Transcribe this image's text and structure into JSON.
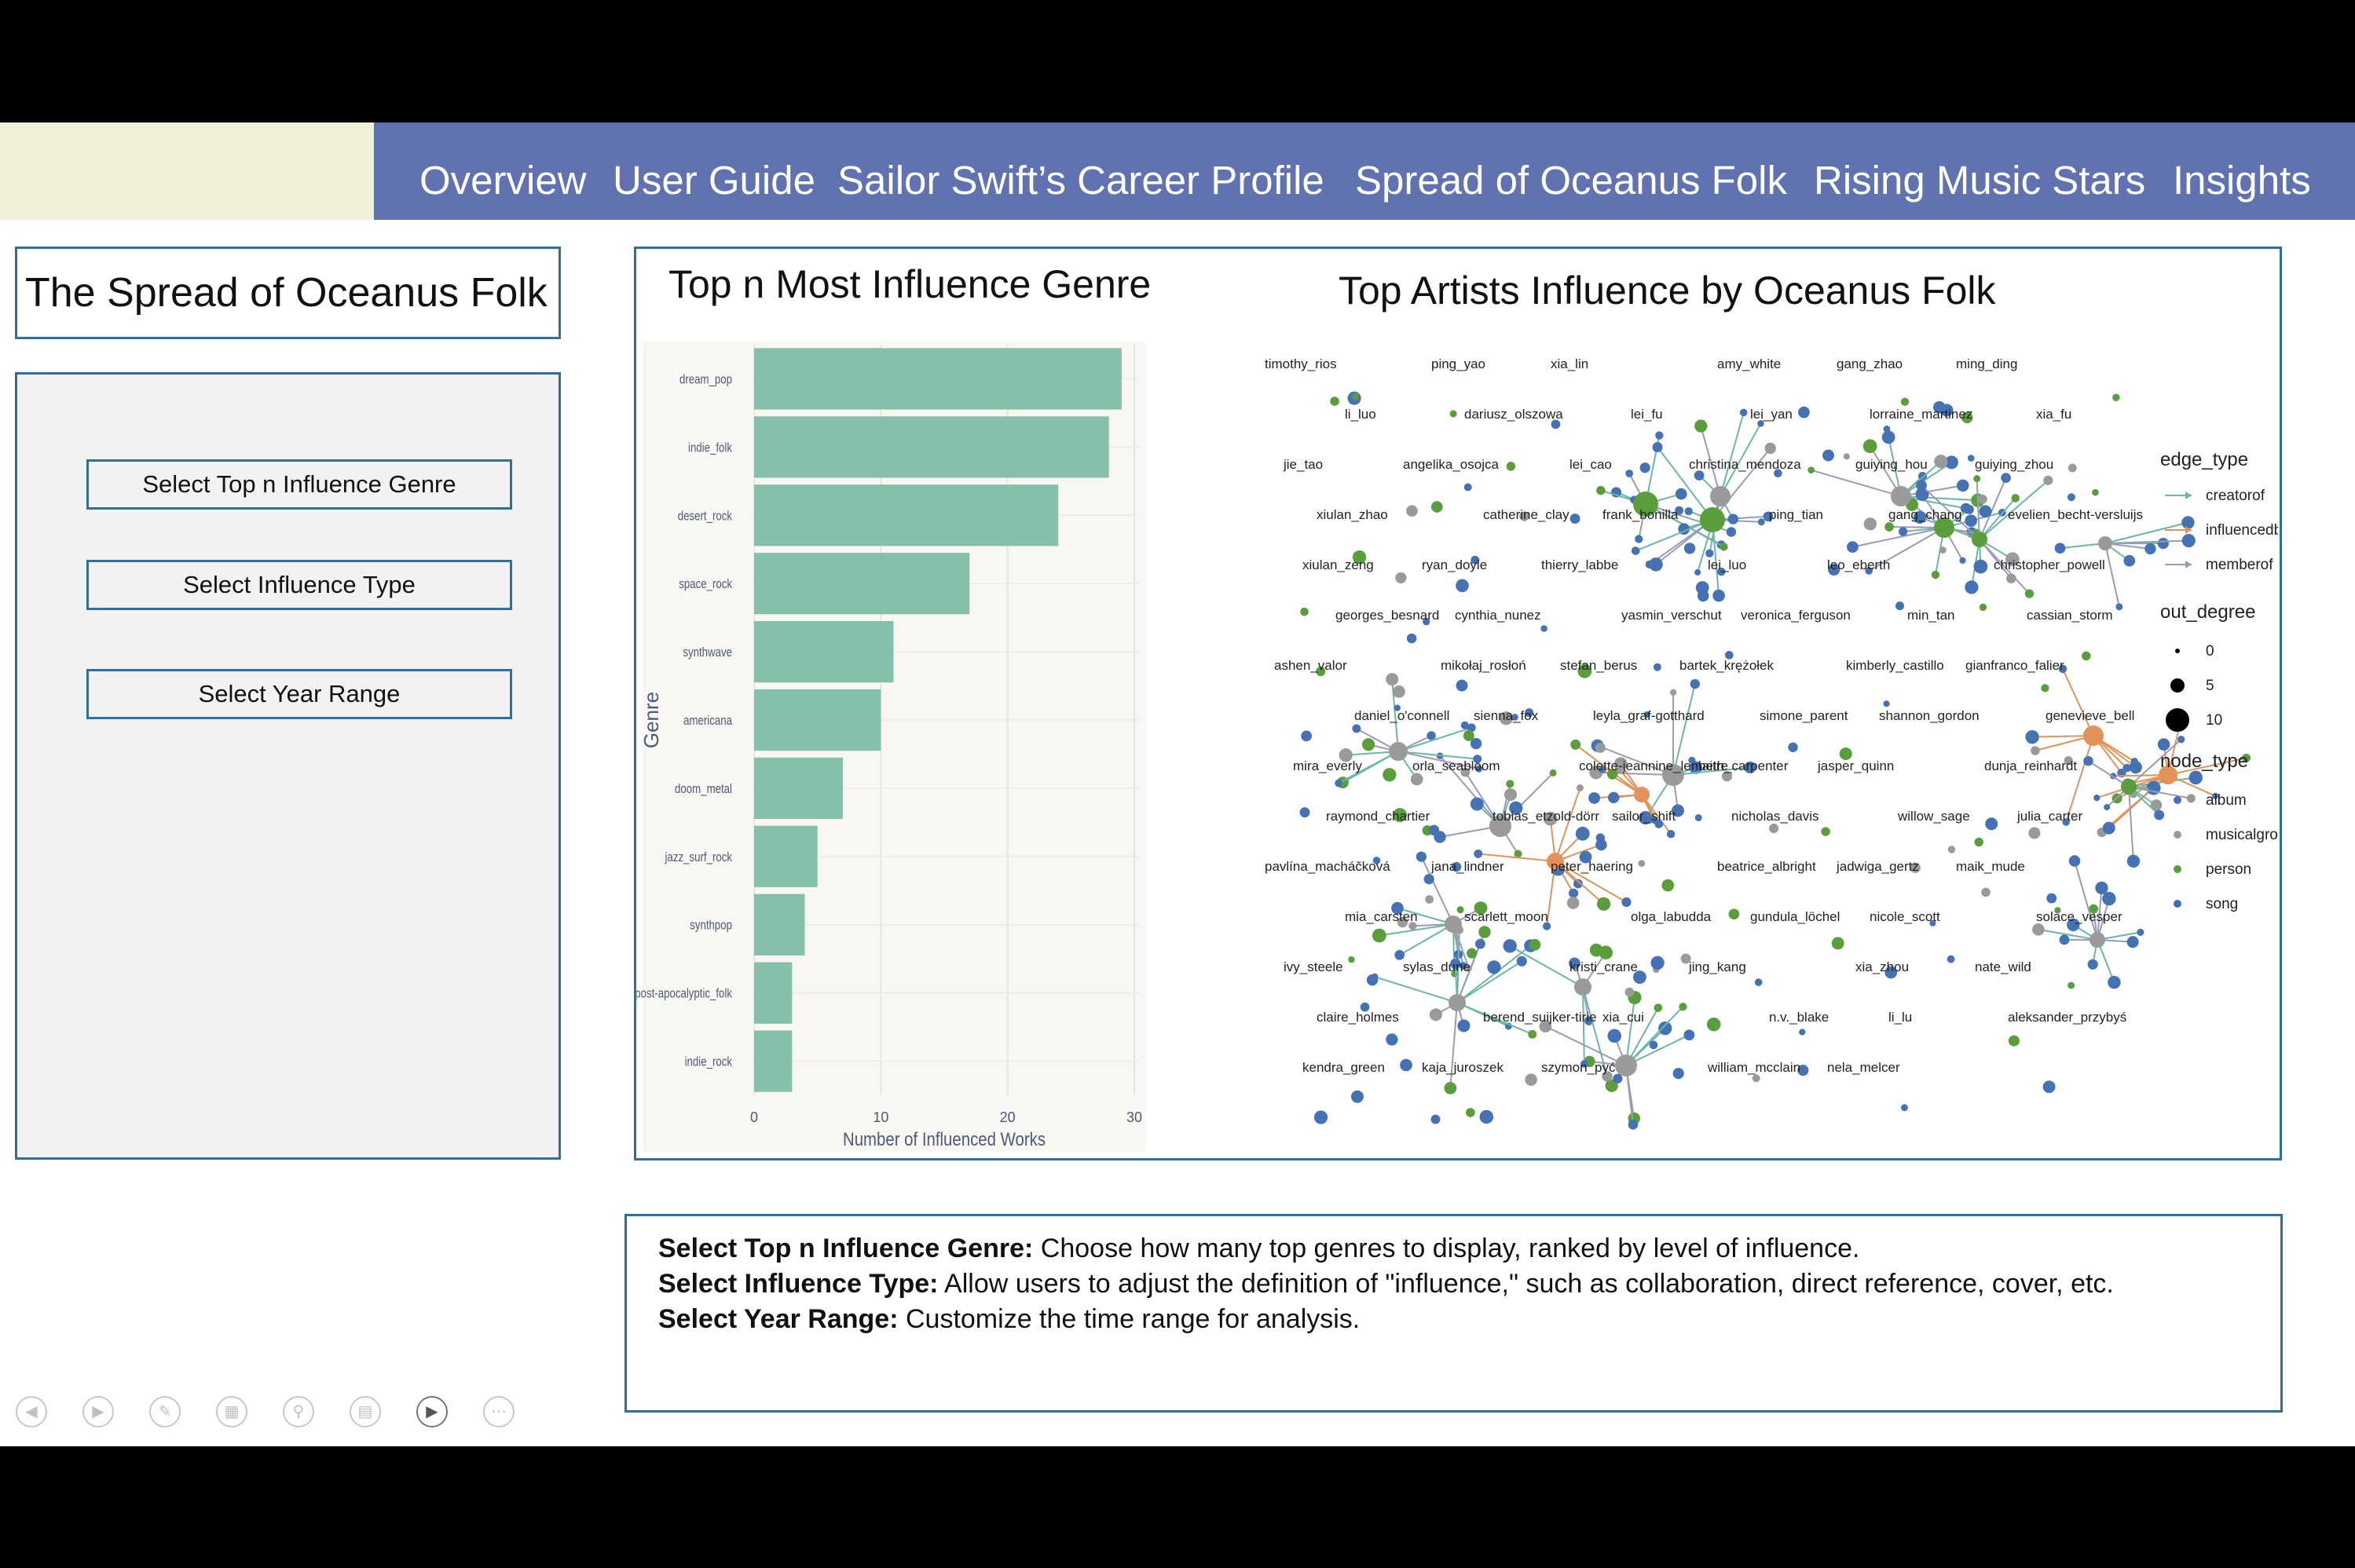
{
  "nav": {
    "items": [
      "Overview",
      "User Guide",
      "Sailor Swift’s Career Profile",
      "Spread of Oceanus Folk",
      "Rising Music Stars",
      "Insights"
    ]
  },
  "page_title": "The Spread of Oceanus Folk",
  "controls": {
    "top_n": "Select Top n Influence Genre",
    "influence_type": "Select Influence Type",
    "year_range": "Select Year Range"
  },
  "chart_titles": {
    "bar": "Top n Most Influence Genre",
    "network": "Top Artists Influence by Oceanus Folk"
  },
  "chart_data": {
    "type": "bar",
    "orientation": "horizontal",
    "categories": [
      "dream_pop",
      "indie_folk",
      "desert_rock",
      "space_rock",
      "synthwave",
      "americana",
      "doom_metal",
      "jazz_surf_rock",
      "synthpop",
      "post-apocalyptic_folk",
      "indie_rock"
    ],
    "values": [
      29,
      28,
      24,
      17,
      11,
      10,
      7,
      5,
      4,
      3,
      3
    ],
    "xlabel": "Number of Influenced Works",
    "ylabel": "Genre",
    "xlim": [
      0,
      30
    ],
    "xticks": [
      0,
      10,
      20,
      30
    ],
    "bar_color": "#86c0aa",
    "background": "#f8f7f1",
    "grid": true
  },
  "network": {
    "legend": {
      "edge_type": {
        "title": "edge_type",
        "items": [
          {
            "label": "creatorof",
            "color": "#6ab7a8"
          },
          {
            "label": "influencedby",
            "color": "#e3935a"
          },
          {
            "label": "memberof",
            "color": "#9a9ab8"
          }
        ]
      },
      "out_degree": {
        "title": "out_degree",
        "items": [
          {
            "label": "0",
            "size": 0
          },
          {
            "label": "5",
            "size": 5
          },
          {
            "label": "10",
            "size": 10
          }
        ]
      },
      "node_type": {
        "title": "node_type",
        "items": [
          {
            "label": "album",
            "color": "#4472b5"
          },
          {
            "label": "musicalgroup",
            "color": "#9a9a9a"
          },
          {
            "label": "person",
            "color": "#5a9e3c"
          },
          {
            "label": "song",
            "color": "#3e6eb0"
          }
        ]
      }
    },
    "labels": [
      "timothy_rios",
      "ping_yao",
      "xia_lin",
      "amy_white",
      "gang_zhao",
      "ming_ding",
      "li_luo",
      "dariusz_olszowa",
      "lei_fu",
      "lei_yan",
      "lorraine_martinez",
      "xia_fu",
      "jie_tao",
      "angelika_osojca",
      "lei_cao",
      "christina_mendoza",
      "guiying_hou",
      "guiying_zhou",
      "xiulan_zhao",
      "catherine_clay",
      "frank_bonilla",
      "ping_tian",
      "gang_chang",
      "evelien_becht-versluijs",
      "xiulan_zeng",
      "ryan_doyle",
      "thierry_labbe",
      "lei_luo",
      "leo_eberth",
      "christopher_powell",
      "georges_besnard",
      "cynthia_nunez",
      "yasmin_verschut",
      "veronica_ferguson",
      "min_tan",
      "cassian_storm",
      "ashen_valor",
      "mikołaj_rosłoń",
      "stefan_berus",
      "bartek_krężołek",
      "kimberly_castillo",
      "gianfranco_falier",
      "daniel_o'connell",
      "sienna_fox",
      "leyla_graf-gotthard",
      "simone_parent",
      "shannon_gordon",
      "genevieve_bell",
      "mira_everly",
      "orla_seabloom",
      "colette-jeannine_lemaitre",
      "beth_carpenter",
      "jasper_quinn",
      "dunja_reinhardt",
      "raymond_chartier",
      "tobias_etzold-dörr",
      "sailor_shift",
      "nicholas_davis",
      "willow_sage",
      "julia_carter",
      "pavlína_macháčková",
      "jana_lindner",
      "peter_haering",
      "beatrice_albright",
      "jadwiga_gertz",
      "maik_mude",
      "mia_carsten",
      "scarlett_moon",
      "olga_labudda",
      "gundula_löchel",
      "nicole_scott",
      "solace_vesper",
      "ivy_steele",
      "sylas_dune",
      "kristi_crane",
      "jing_kang",
      "xia_zhou",
      "nate_wild",
      "claire_holmes",
      "berend_suijker-tirie",
      "xia_cui",
      "n.v._blake",
      "li_lu",
      "aleksander_przybyś",
      "kendra_green",
      "kaja_juroszek",
      "szymon_pyć",
      "william_mcclain",
      "nela_melcer"
    ]
  },
  "notes": [
    {
      "label": "Select Top n Influence Genre:",
      "text": " Choose how many top genres to display, ranked by level of influence."
    },
    {
      "label": "Select Influence Type:",
      "text": " Allow users to adjust the definition of \"influence,\" such as collaboration, direct reference, cover, etc."
    },
    {
      "label": "Select Year Range:",
      "text": " Customize the time range for analysis."
    }
  ],
  "slideshow_controls": [
    "prev-icon",
    "next-icon",
    "pen-icon",
    "slides-icon",
    "zoom-icon",
    "subtitles-icon",
    "camera-icon",
    "more-icon"
  ]
}
